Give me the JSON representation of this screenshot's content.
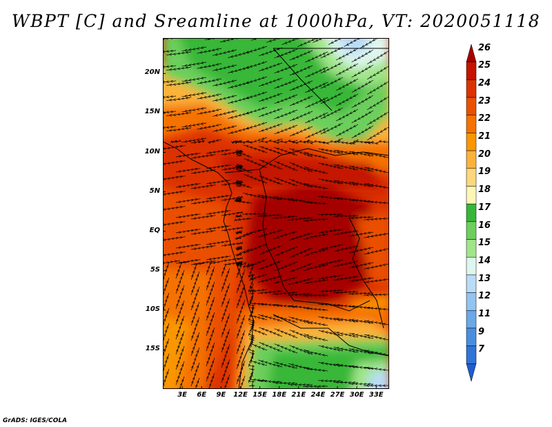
{
  "title": "WBPT [C] and Sreamline at 1000hPa, VT: 2020051118",
  "credit": "GrADS: IGES/COLA",
  "map": {
    "lat_labels": [
      "20N",
      "15N",
      "10N",
      "5N",
      "EQ",
      "5S",
      "10S",
      "15S"
    ],
    "lat_values": [
      20,
      15,
      10,
      5,
      0,
      -5,
      -10,
      -15
    ],
    "lon_labels": [
      "3E",
      "6E",
      "9E",
      "12E",
      "15E",
      "18E",
      "21E",
      "24E",
      "27E",
      "30E",
      "33E"
    ],
    "lon_values": [
      3,
      6,
      9,
      12,
      15,
      18,
      21,
      24,
      27,
      30,
      33
    ],
    "lon_range": [
      0,
      35
    ],
    "lat_range": [
      -20,
      24.5
    ]
  },
  "colorbar": {
    "levels": [
      "26",
      "25",
      "24",
      "23",
      "22",
      "21",
      "20",
      "19",
      "18",
      "17",
      "16",
      "15",
      "14",
      "13",
      "12",
      "11",
      "9",
      "7"
    ],
    "colors": [
      "#a50000",
      "#c41400",
      "#dc3200",
      "#ea5000",
      "#f57200",
      "#fa9600",
      "#fbb23a",
      "#fdd77a",
      "#fff6b4",
      "#37b737",
      "#6ccf5c",
      "#a0e58a",
      "#dff6ef",
      "#b9dcf7",
      "#93c4f0",
      "#6aa8e7",
      "#4a8ee0",
      "#2f74d8",
      "#1e5dcf"
    ]
  }
}
